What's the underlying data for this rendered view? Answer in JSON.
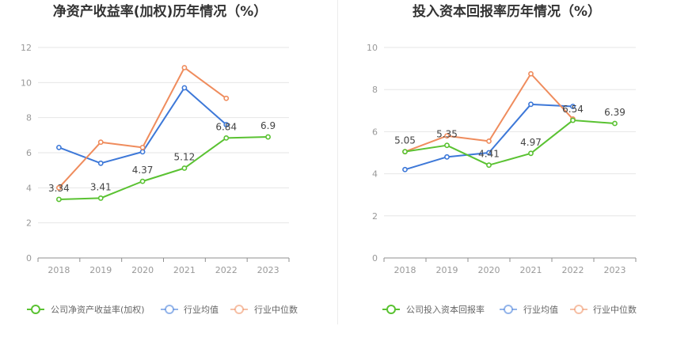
{
  "chart_data": [
    {
      "type": "line",
      "title": "净资产收益率(加权)历年情况（%）",
      "categories": [
        "2018",
        "2019",
        "2020",
        "2021",
        "2022",
        "2023"
      ],
      "ylim": [
        0,
        12
      ],
      "yticks": [
        0,
        2,
        4,
        6,
        8,
        10,
        12
      ],
      "grid": true,
      "legend": "bottom",
      "series": [
        {
          "name": "公司净资产收益率(加权)",
          "color": "#5ac232",
          "labeled": true,
          "values": [
            3.34,
            3.41,
            4.37,
            5.12,
            6.84,
            6.9
          ]
        },
        {
          "name": "行业均值",
          "color": "#3d78d8",
          "labeled": false,
          "values": [
            6.3,
            5.4,
            6.05,
            9.7,
            7.6,
            null
          ]
        },
        {
          "name": "行业中位数",
          "color": "#ef8c5d",
          "labeled": false,
          "values": [
            4.0,
            6.6,
            6.3,
            10.85,
            9.1,
            null
          ]
        }
      ]
    },
    {
      "type": "line",
      "title": "投入资本回报率历年情况（%）",
      "categories": [
        "2018",
        "2019",
        "2020",
        "2021",
        "2022",
        "2023"
      ],
      "ylim": [
        0,
        10
      ],
      "yticks": [
        0,
        2,
        4,
        6,
        8,
        10
      ],
      "grid": true,
      "legend": "bottom",
      "series": [
        {
          "name": "公司投入资本回报率",
          "color": "#5ac232",
          "labeled": true,
          "values": [
            5.05,
            5.35,
            4.41,
            4.97,
            6.54,
            6.39
          ]
        },
        {
          "name": "行业均值",
          "color": "#3d78d8",
          "labeled": false,
          "values": [
            4.2,
            4.8,
            5.0,
            7.3,
            7.2,
            null
          ]
        },
        {
          "name": "行业中位数",
          "color": "#ef8c5d",
          "labeled": false,
          "values": [
            5.05,
            5.8,
            5.55,
            8.75,
            6.6,
            null
          ]
        }
      ]
    }
  ]
}
